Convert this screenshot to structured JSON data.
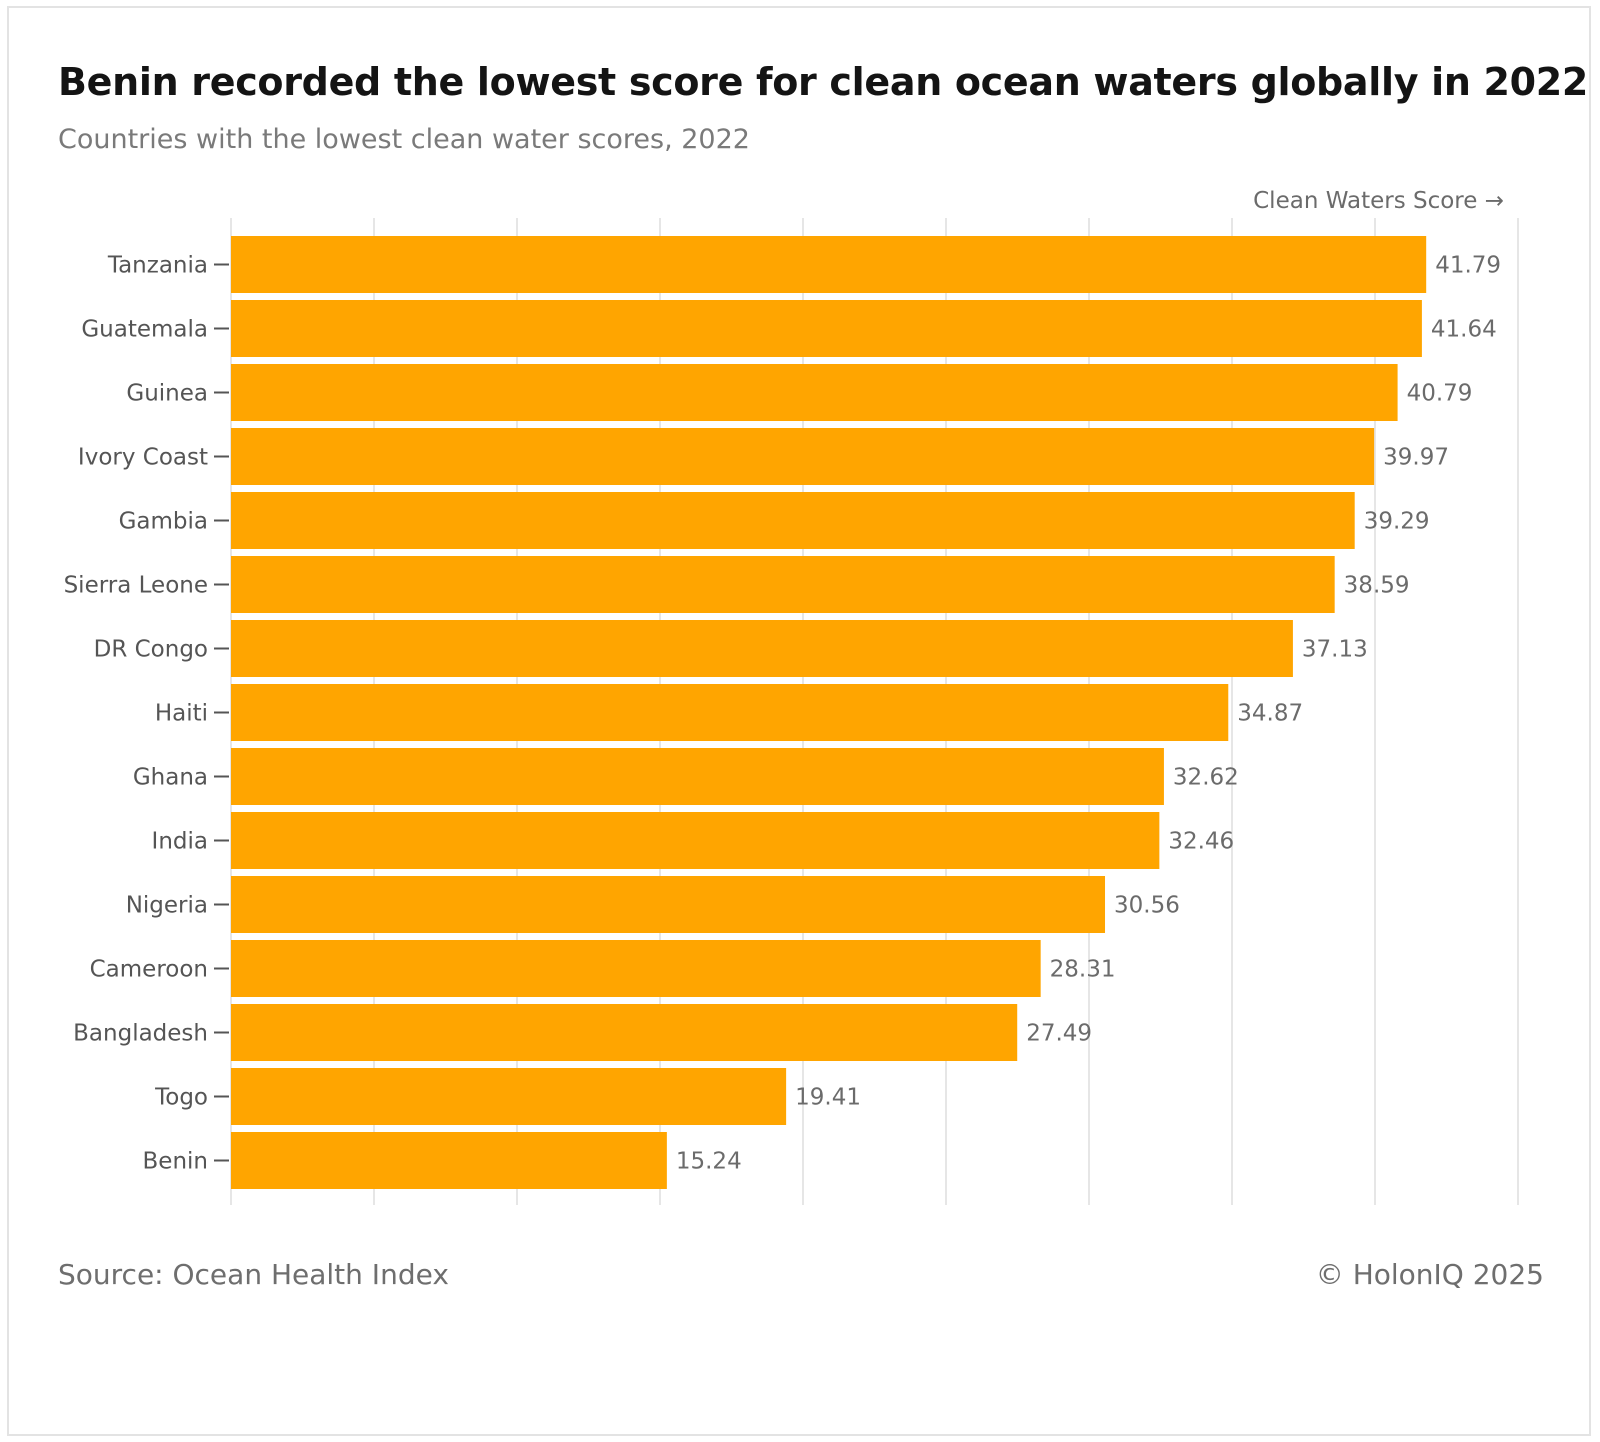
{
  "header": {
    "title": "Benin recorded the lowest score for clean ocean waters globally in 2022",
    "subtitle": "Countries with the lowest clean water scores, 2022"
  },
  "footer": {
    "source": "Source: Ocean Health Index",
    "copyright": "© HolonIQ 2025"
  },
  "colors": {
    "bar": "#FFA500",
    "grid": "#e6e6e6",
    "axis_text": "#555555",
    "value_text": "#6b6b6b"
  },
  "chart_data": {
    "type": "bar",
    "orientation": "horizontal",
    "xlabel": "Clean Waters Score →",
    "ylabel": "",
    "xlim": [
      0,
      45
    ],
    "grid": true,
    "categories": [
      "Tanzania",
      "Guatemala",
      "Guinea",
      "Ivory Coast",
      "Gambia",
      "Sierra Leone",
      "DR Congo",
      "Haiti",
      "Ghana",
      "India",
      "Nigeria",
      "Cameroon",
      "Bangladesh",
      "Togo",
      "Benin"
    ],
    "values": [
      41.79,
      41.64,
      40.79,
      39.97,
      39.29,
      38.59,
      37.13,
      34.87,
      32.62,
      32.46,
      30.56,
      28.31,
      27.49,
      19.41,
      15.24
    ],
    "value_labels": [
      "41.79",
      "41.64",
      "40.79",
      "39.97",
      "39.29",
      "38.59",
      "37.13",
      "34.87",
      "32.62",
      "32.46",
      "30.56",
      "28.31",
      "27.49",
      "19.41",
      "15.24"
    ]
  }
}
